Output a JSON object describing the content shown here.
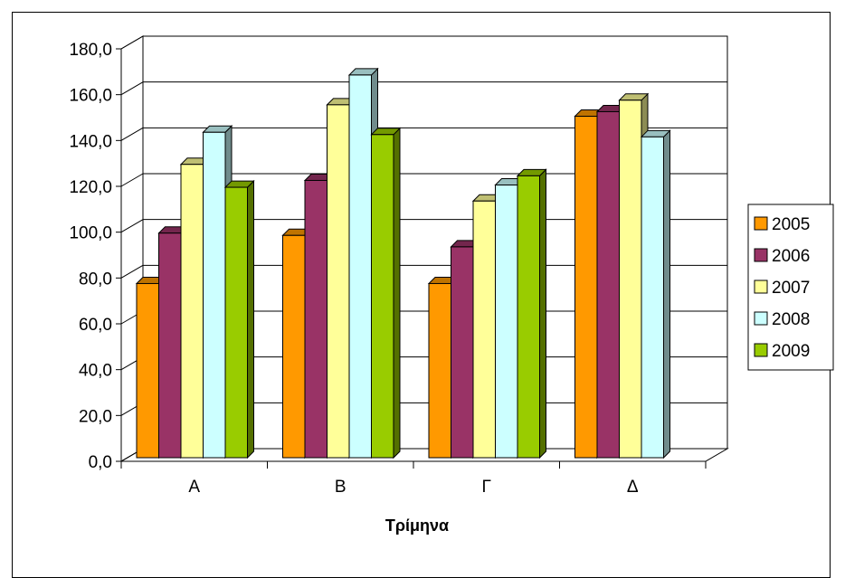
{
  "chart_data": {
    "type": "bar",
    "title": "",
    "xlabel": "Τρίμηνα",
    "ylabel": "",
    "categories": [
      "Α",
      "Β",
      "Γ",
      "Δ"
    ],
    "ylim": [
      0,
      180
    ],
    "yticks": [
      "0,0",
      "20,0",
      "40,0",
      "60,0",
      "80,0",
      "100,0",
      "120,0",
      "140,0",
      "160,0",
      "180,0"
    ],
    "grid": true,
    "legend_position": "right",
    "series": [
      {
        "name": "2005",
        "color": "#FF9900",
        "values": [
          76,
          97,
          76,
          149
        ]
      },
      {
        "name": "2006",
        "color": "#993366",
        "values": [
          98,
          121,
          92,
          151
        ]
      },
      {
        "name": "2007",
        "color": "#FFFF99",
        "values": [
          128,
          154,
          112,
          156
        ]
      },
      {
        "name": "2008",
        "color": "#CCFFFF",
        "values": [
          142,
          167,
          119,
          140
        ]
      },
      {
        "name": "2009",
        "color": "#99CC00",
        "values": [
          118,
          141,
          123,
          null
        ]
      }
    ]
  }
}
